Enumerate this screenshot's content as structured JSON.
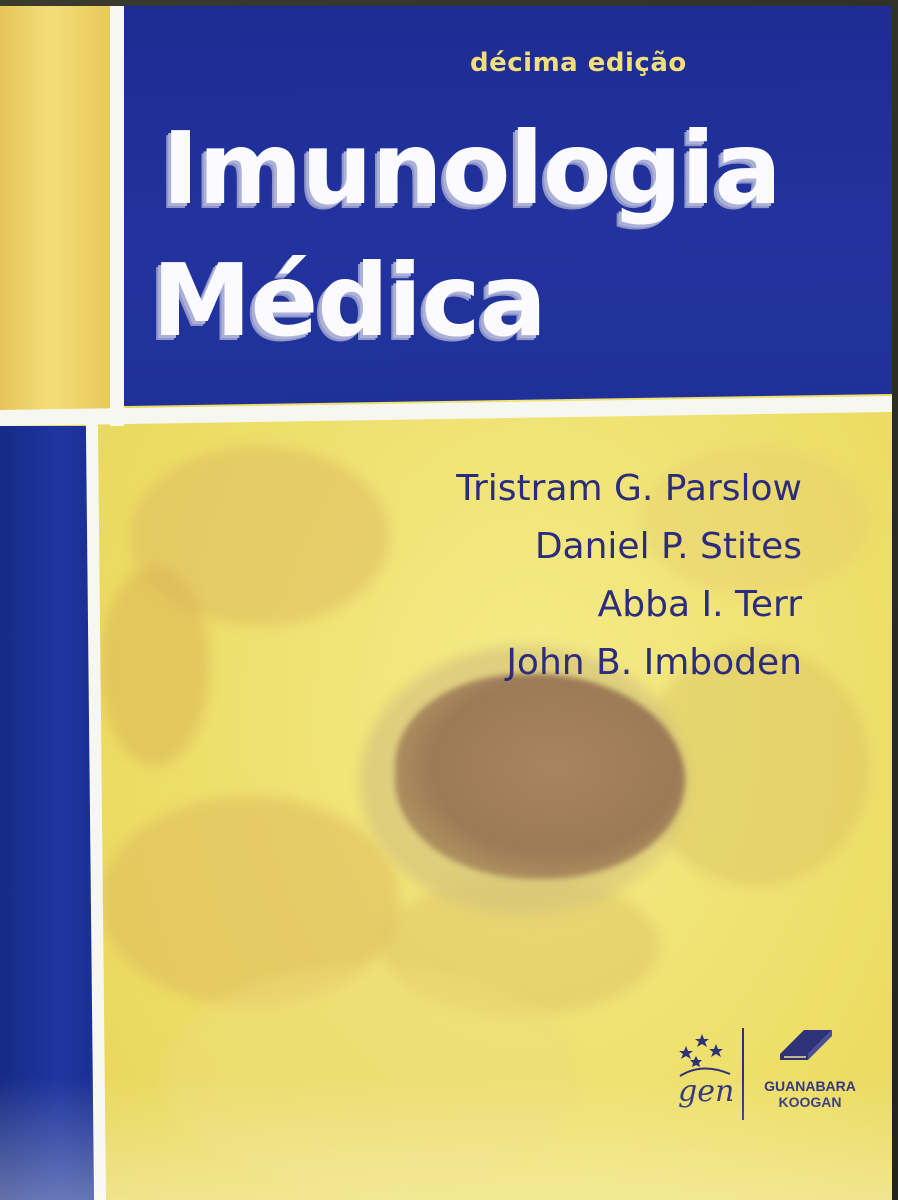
{
  "cover": {
    "edition": "décima edição",
    "title_line_1": "Imunologia",
    "title_line_2": "Médica",
    "authors": [
      "Tristram G. Parslow",
      "Daniel P. Stites",
      "Abba I. Terr",
      "John B. Imboden"
    ]
  },
  "publisher": {
    "gen_logo_text": "gen",
    "name_line_1": "GUANABARA",
    "name_line_2": "KOOGAN",
    "gen_icon": "stars-arc-icon",
    "guanabara_icon": "book-icon"
  },
  "colors": {
    "title_panel_blue": "#1f3199",
    "edition_yellow": "#f2df7a",
    "cover_yellow": "#ecdc63",
    "author_text": "#2b2c7e"
  }
}
